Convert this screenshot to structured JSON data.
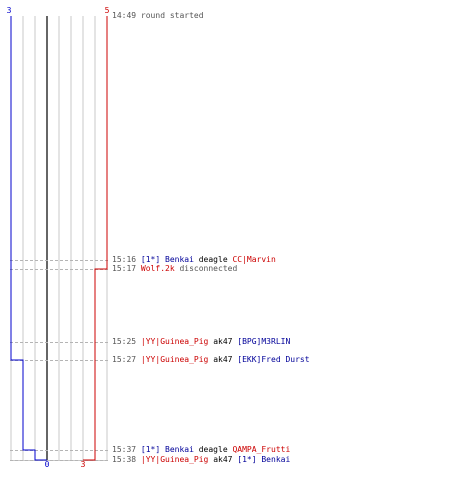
{
  "timeline": {
    "columns": 9,
    "team_colors": {
      "blue": "#0000cc",
      "red": "#cc0000"
    },
    "score_top": {
      "blue": "3",
      "red": "5"
    },
    "score_bottom": {
      "blue": "0",
      "red": "3"
    },
    "blue_steps": [
      3,
      3,
      3,
      3,
      2,
      1,
      0
    ],
    "red_steps": [
      5,
      5,
      4,
      4,
      4,
      4,
      3
    ]
  },
  "events": [
    {
      "time": "14:49",
      "type": "info",
      "text": "round started"
    },
    {
      "time": "15:16",
      "type": "kill",
      "killer": "[1*] Benkai",
      "killer_team": "blue",
      "weapon": "deagle",
      "victim": "CC|Marvin",
      "victim_team": "red"
    },
    {
      "time": "15:17",
      "type": "disconnect",
      "player": "Wolf.2k",
      "player_team": "red",
      "text": "disconnected"
    },
    {
      "time": "15:25",
      "type": "kill",
      "killer": "|YY|Guinea_Pig",
      "killer_team": "red",
      "weapon": "ak47",
      "victim": "[BPG]M3RLIN",
      "victim_team": "blue"
    },
    {
      "time": "15:27",
      "type": "kill",
      "killer": "|YY|Guinea_Pig",
      "killer_team": "red",
      "weapon": "ak47",
      "victim": "[EKK]Fred Durst",
      "victim_team": "blue"
    },
    {
      "time": "15:37",
      "type": "kill",
      "killer": "[1*] Benkai",
      "killer_team": "blue",
      "weapon": "deagle",
      "victim": "QAMPA_Frutti",
      "victim_team": "red"
    },
    {
      "time": "15:38",
      "type": "kill",
      "killer": "|YY|Guinea_Pig",
      "killer_team": "red",
      "weapon": "ak47",
      "victim": "[1*] Benkai",
      "victim_team": "blue"
    }
  ]
}
